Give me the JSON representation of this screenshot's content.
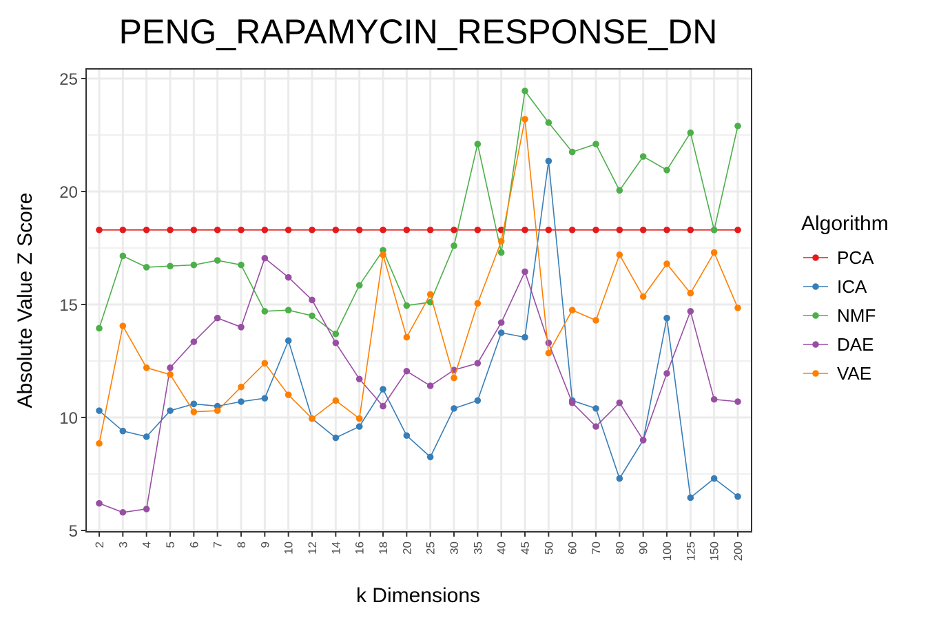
{
  "chart_data": {
    "type": "line",
    "title": "PENG_RAPAMYCIN_RESPONSE_DN",
    "xlabel": "k Dimensions",
    "ylabel": "Absolute Value Z Score",
    "categories": [
      "2",
      "3",
      "4",
      "5",
      "6",
      "7",
      "8",
      "9",
      "10",
      "12",
      "14",
      "16",
      "18",
      "20",
      "25",
      "30",
      "35",
      "40",
      "45",
      "50",
      "60",
      "70",
      "80",
      "90",
      "100",
      "125",
      "150",
      "200"
    ],
    "y_ticks": [
      "5",
      "10",
      "15",
      "20",
      "25"
    ],
    "ylim": [
      5,
      25
    ],
    "grid": true,
    "legend": {
      "title": "Algorithm",
      "position": "right"
    },
    "series": [
      {
        "name": "PCA",
        "color": "#e41a1c",
        "values": [
          18.3,
          18.3,
          18.3,
          18.3,
          18.3,
          18.3,
          18.3,
          18.3,
          18.3,
          18.3,
          18.3,
          18.3,
          18.3,
          18.3,
          18.3,
          18.3,
          18.3,
          18.3,
          18.3,
          18.3,
          18.3,
          18.3,
          18.3,
          18.3,
          18.3,
          18.3,
          18.3,
          18.3
        ]
      },
      {
        "name": "ICA",
        "color": "#377eb8",
        "values": [
          10.3,
          9.4,
          9.15,
          10.3,
          10.6,
          10.5,
          10.7,
          10.85,
          13.4,
          9.95,
          9.1,
          9.6,
          11.25,
          9.2,
          8.25,
          10.4,
          10.75,
          13.75,
          13.55,
          21.35,
          10.75,
          10.4,
          7.3,
          9.0,
          14.4,
          6.45,
          7.3,
          6.5
        ]
      },
      {
        "name": "NMF",
        "color": "#4daf4a",
        "values": [
          13.95,
          17.15,
          16.65,
          16.7,
          16.75,
          16.95,
          16.75,
          14.7,
          14.75,
          14.5,
          13.7,
          15.85,
          17.4,
          14.95,
          15.1,
          17.6,
          22.1,
          17.3,
          24.45,
          23.05,
          21.75,
          22.1,
          20.05,
          21.55,
          20.95,
          22.6,
          18.3,
          22.9
        ]
      },
      {
        "name": "DAE",
        "color": "#984ea3",
        "values": [
          6.2,
          5.8,
          5.95,
          12.2,
          13.35,
          14.4,
          14.0,
          17.05,
          16.2,
          15.2,
          13.3,
          11.7,
          10.5,
          12.05,
          11.4,
          12.1,
          12.4,
          14.2,
          16.45,
          13.3,
          10.65,
          9.6,
          10.65,
          9.0,
          11.95,
          14.7,
          10.8,
          10.7
        ]
      },
      {
        "name": "VAE",
        "color": "#ff7f00",
        "values": [
          8.85,
          14.05,
          12.2,
          11.9,
          10.25,
          10.3,
          11.35,
          12.4,
          11.0,
          9.95,
          10.75,
          9.95,
          17.2,
          13.55,
          15.45,
          11.75,
          15.05,
          17.8,
          23.2,
          12.85,
          14.75,
          14.3,
          17.2,
          15.35,
          16.8,
          15.5,
          17.3,
          14.85
        ]
      }
    ]
  }
}
